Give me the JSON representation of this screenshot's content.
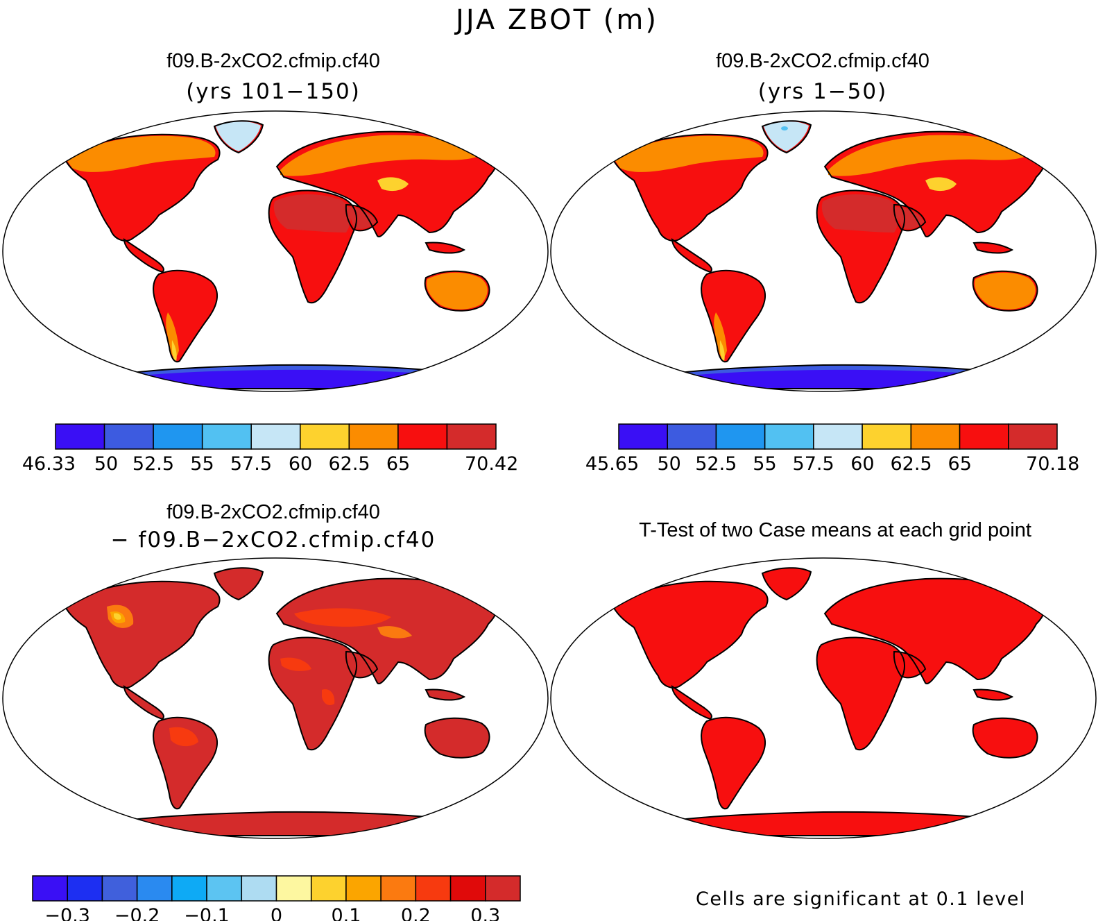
{
  "title": "JJA ZBOT (m)",
  "panels": [
    {
      "id": "top-left",
      "title": "f09.B-2xCO2.cfmip.cf40",
      "subtitle": "(yrs 101−150)",
      "colorbar": {
        "colors": [
          "#3a0ff5",
          "#3d5be0",
          "#1f96f0",
          "#52c1f2",
          "#c6e6f6",
          "#fdd22e",
          "#fb8c00",
          "#f70f0f",
          "#d42b2b"
        ],
        "labels": [
          "46.33",
          "50",
          "52.5",
          "55",
          "57.5",
          "60",
          "62.5",
          "65",
          "70.42"
        ]
      }
    },
    {
      "id": "top-right",
      "title": "f09.B-2xCO2.cfmip.cf40",
      "subtitle": "(yrs 1−50)",
      "colorbar": {
        "colors": [
          "#3a0ff5",
          "#3d5be0",
          "#1f96f0",
          "#52c1f2",
          "#c6e6f6",
          "#fdd22e",
          "#fb8c00",
          "#f70f0f",
          "#d42b2b"
        ],
        "labels": [
          "45.65",
          "50",
          "52.5",
          "55",
          "57.5",
          "60",
          "62.5",
          "65",
          "70.18"
        ]
      }
    },
    {
      "id": "bottom-left",
      "title": "f09.B-2xCO2.cfmip.cf40",
      "subtitle": "− f09.B−2xCO2.cfmip.cf40",
      "colorbar": {
        "colors": [
          "#3a0ff5",
          "#1d2ff2",
          "#4060dc",
          "#2a8af0",
          "#0eaaf5",
          "#5cc4f2",
          "#aedcf2",
          "#fdf7a0",
          "#fdd22e",
          "#fba500",
          "#fb7a10",
          "#f73a0f",
          "#e00a0a",
          "#d42b2b"
        ],
        "labels": [
          "−0.3",
          "−0.2",
          "−0.1",
          "0",
          "0.1",
          "0.2",
          "0.3"
        ]
      }
    },
    {
      "id": "bottom-right",
      "title": "T-Test of two Case means at each grid point",
      "note": "Cells are significant at 0.1 level"
    }
  ],
  "map_colors": {
    "land_hot": "#d42b2b",
    "land_red": "#f70f0f",
    "land_orange": "#fb8c00",
    "land_yellow": "#fdd22e",
    "land_pale": "#c6e6f6",
    "ice_blue": "#3a0ff5",
    "ice_mid": "#1f96f0"
  }
}
